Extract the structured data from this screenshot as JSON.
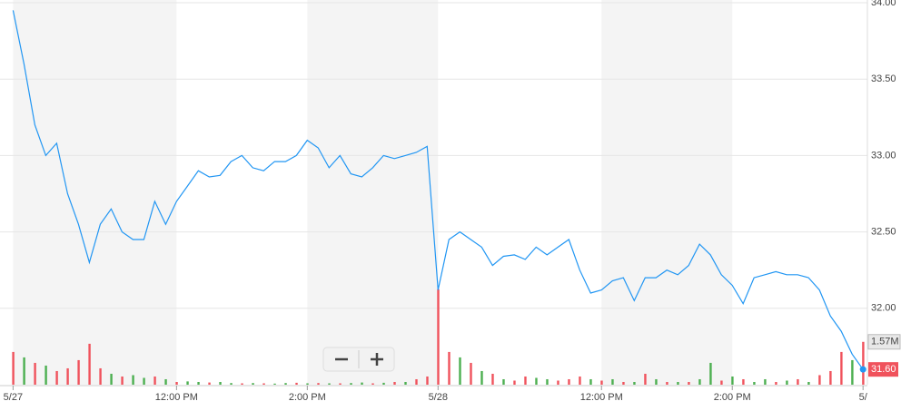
{
  "chart_data": {
    "type": "line",
    "price": [
      33.95,
      33.6,
      33.2,
      33.0,
      33.08,
      32.75,
      32.55,
      32.3,
      32.55,
      32.65,
      32.5,
      32.45,
      32.45,
      32.7,
      32.55,
      32.7,
      32.8,
      32.9,
      32.86,
      32.87,
      32.96,
      33.0,
      32.92,
      32.9,
      32.96,
      32.96,
      33.0,
      33.1,
      33.05,
      32.92,
      33.0,
      32.88,
      32.86,
      32.92,
      33.0,
      32.98,
      33.0,
      33.02,
      33.06,
      32.12,
      32.45,
      32.5,
      32.45,
      32.4,
      32.28,
      32.34,
      32.35,
      32.32,
      32.4,
      32.35,
      32.4,
      32.45,
      32.25,
      32.1,
      32.12,
      32.18,
      32.2,
      32.05,
      32.2,
      32.2,
      32.25,
      32.22,
      32.28,
      32.42,
      32.35,
      32.22,
      32.15,
      32.03,
      32.2,
      32.22,
      32.24,
      32.22,
      32.22,
      32.2,
      32.12,
      31.95,
      31.85,
      31.7,
      31.6
    ],
    "price_color": "#2196f3",
    "last_price_label": "31.60",
    "volume": [
      1.2,
      1.0,
      0.8,
      0.7,
      0.5,
      0.6,
      0.9,
      1.5,
      0.6,
      0.4,
      0.3,
      0.35,
      0.25,
      0.3,
      0.2,
      0.1,
      0.12,
      0.1,
      0.08,
      0.1,
      0.06,
      0.05,
      0.06,
      0.05,
      0.04,
      0.06,
      0.07,
      0.05,
      0.06,
      0.05,
      0.05,
      0.06,
      0.08,
      0.05,
      0.07,
      0.1,
      0.1,
      0.2,
      0.3,
      3.5,
      1.2,
      1.0,
      0.8,
      0.5,
      0.4,
      0.2,
      0.15,
      0.3,
      0.25,
      0.2,
      0.15,
      0.2,
      0.3,
      0.2,
      0.15,
      0.2,
      0.1,
      0.1,
      0.4,
      0.2,
      0.1,
      0.1,
      0.1,
      0.2,
      0.8,
      0.15,
      0.3,
      0.2,
      0.1,
      0.2,
      0.1,
      0.15,
      0.2,
      0.1,
      0.35,
      0.5,
      1.2,
      0.9,
      1.57
    ],
    "volume_up": [
      false,
      true,
      false,
      true,
      false,
      false,
      false,
      false,
      false,
      true,
      false,
      true,
      true,
      false,
      true,
      false,
      true,
      true,
      false,
      true,
      true,
      false,
      true,
      false,
      true,
      true,
      false,
      true,
      false,
      true,
      false,
      true,
      true,
      false,
      true,
      false,
      true,
      false,
      false,
      false,
      false,
      true,
      false,
      true,
      false,
      true,
      false,
      false,
      true,
      true,
      false,
      false,
      false,
      true,
      false,
      true,
      false,
      true,
      false,
      true,
      false,
      true,
      false,
      true,
      true,
      false,
      true,
      false,
      true,
      true,
      false,
      true,
      false,
      true,
      false,
      false,
      false,
      true,
      false
    ],
    "up_color": "#4caf50",
    "down_color": "#f0525c",
    "xlim": [
      -1.2,
      78.4
    ],
    "xticks": [
      {
        "value": 0,
        "label": "5/27"
      },
      {
        "value": 15,
        "label": "12:00 PM"
      },
      {
        "value": 27,
        "label": "2:00 PM"
      },
      {
        "value": 39,
        "label": "5/28"
      },
      {
        "value": 54,
        "label": "12:00 PM"
      },
      {
        "value": 66,
        "label": "2:00 PM"
      },
      {
        "value": 78,
        "label": "5/"
      }
    ],
    "ylim": [
      31.5,
      34.0
    ],
    "yticks": [
      {
        "value": 32,
        "label": "32.00"
      },
      {
        "value": 32.5,
        "label": "32.50"
      },
      {
        "value": 33,
        "label": "33.00"
      },
      {
        "value": 33.5,
        "label": "33.50"
      },
      {
        "value": 34,
        "label": "34.00"
      }
    ],
    "y2lim": [
      0,
      14
    ],
    "y2ticks": [
      {
        "value": 1.57,
        "label": "1.57M"
      }
    ],
    "grid": true
  }
}
